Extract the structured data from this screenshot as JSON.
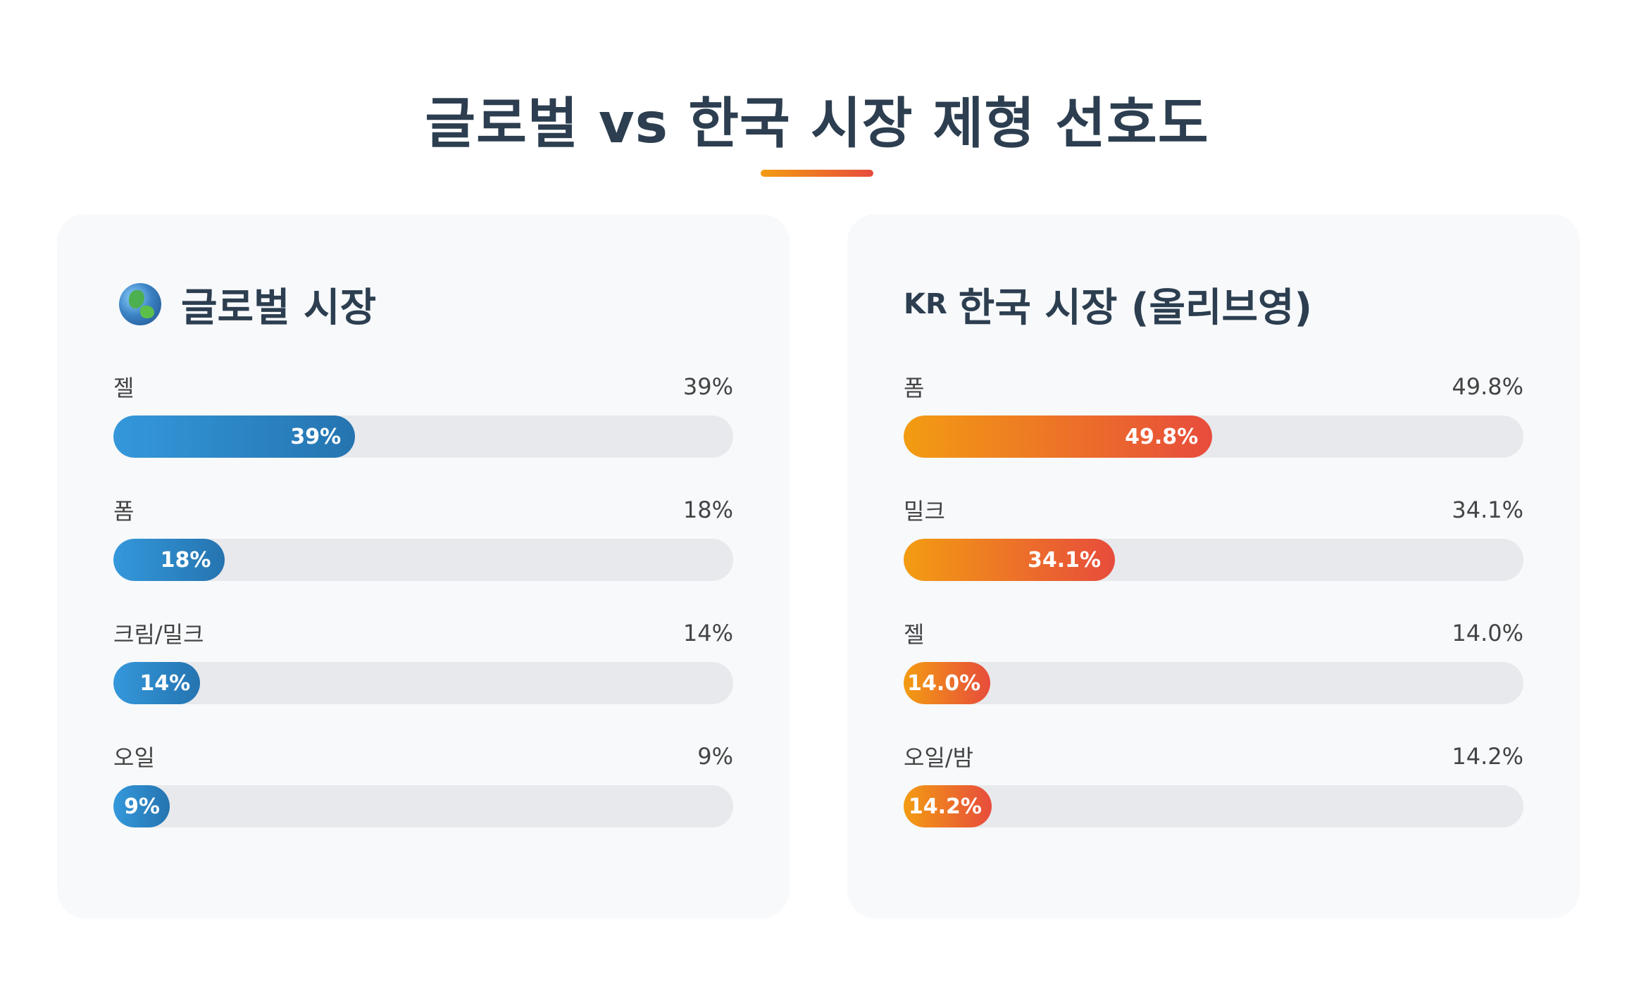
{
  "page": {
    "title": "글로벌 vs 한국 시장 제형 선호도"
  },
  "panels": {
    "global": {
      "icon": "globe-icon",
      "title": "글로벌 시장",
      "accent": [
        "#3498db",
        "#2574b0"
      ]
    },
    "korea": {
      "flag_code": "KR",
      "title": "한국 시장 (올리브영)",
      "accent": [
        "#f39c12",
        "#e74c3c"
      ]
    }
  },
  "chart_data": [
    {
      "type": "bar",
      "orientation": "horizontal",
      "title": "글로벌 시장",
      "xlim": [
        0,
        100
      ],
      "categories": [
        "젤",
        "폼",
        "크림/밀크",
        "오일"
      ],
      "values": [
        39,
        18,
        14,
        9
      ],
      "value_labels": [
        "39%",
        "18%",
        "14%",
        "9%"
      ]
    },
    {
      "type": "bar",
      "orientation": "horizontal",
      "title": "한국 시장 (올리브영)",
      "xlim": [
        0,
        100
      ],
      "categories": [
        "폼",
        "밀크",
        "젤",
        "오일/밤"
      ],
      "values": [
        49.8,
        34.1,
        14.0,
        14.2
      ],
      "value_labels": [
        "49.8%",
        "34.1%",
        "14.0%",
        "14.2%"
      ]
    }
  ]
}
